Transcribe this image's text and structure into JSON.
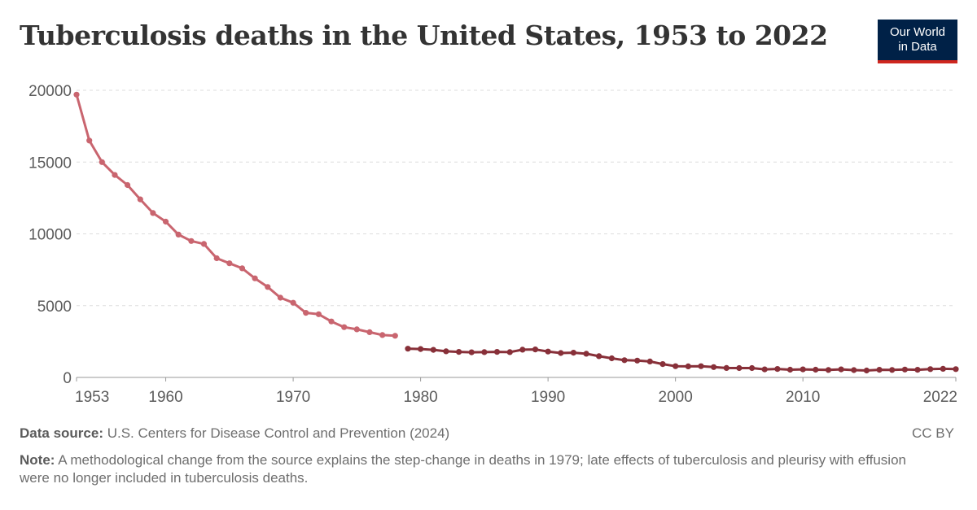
{
  "header": {
    "title": "Tuberculosis deaths in the United States, 1953 to 2022",
    "logo_line1": "Our World",
    "logo_line2": "in Data"
  },
  "footer": {
    "source_label": "Data source:",
    "source_text": "U.S. Centers for Disease Control and Prevention (2024)",
    "license": "CC BY",
    "note_label": "Note:",
    "note_text": "A methodological change from the source explains the step-change in deaths in 1979; late effects of tuberculosis and pleurisy with effusion were no longer included in tuberculosis deaths."
  },
  "colors": {
    "series1": "#c9656f",
    "series2": "#883039",
    "grid": "#dddddd",
    "axis": "#999999",
    "brand": "#002147",
    "brand_accent": "#ce261e"
  },
  "chart_data": {
    "type": "line",
    "title": "Tuberculosis deaths in the United States, 1953 to 2022",
    "xlabel": "",
    "ylabel": "",
    "xlim": [
      1953,
      2022
    ],
    "ylim": [
      0,
      20000
    ],
    "yticks": [
      0,
      5000,
      10000,
      15000,
      20000
    ],
    "xticks": [
      1953,
      1960,
      1970,
      1980,
      1990,
      2000,
      2010,
      2022
    ],
    "grid": true,
    "legend": "none",
    "series": [
      {
        "x": [
          1953,
          1954,
          1955,
          1956,
          1957,
          1958,
          1959,
          1960,
          1961,
          1962,
          1963,
          1964,
          1965,
          1966,
          1967,
          1968,
          1969,
          1970,
          1971,
          1972,
          1973,
          1974,
          1975,
          1976,
          1977,
          1978
        ],
        "values": [
          19700,
          16500,
          15000,
          14100,
          13400,
          12400,
          11450,
          10850,
          9950,
          9500,
          9300,
          8300,
          7950,
          7600,
          6900,
          6300,
          5550,
          5200,
          4500,
          4400,
          3900,
          3500,
          3350,
          3150,
          2950,
          2900
        ]
      },
      {
        "x": [
          1979,
          1980,
          1981,
          1982,
          1983,
          1984,
          1985,
          1986,
          1987,
          1988,
          1989,
          1990,
          1991,
          1992,
          1993,
          1994,
          1995,
          1996,
          1997,
          1998,
          1999,
          2000,
          2001,
          2002,
          2003,
          2004,
          2005,
          2006,
          2007,
          2008,
          2009,
          2010,
          2011,
          2012,
          2013,
          2014,
          2015,
          2016,
          2017,
          2018,
          2019,
          2020,
          2021,
          2022
        ],
        "values": [
          2000,
          1980,
          1920,
          1820,
          1780,
          1750,
          1760,
          1780,
          1760,
          1930,
          1950,
          1800,
          1700,
          1720,
          1650,
          1480,
          1330,
          1200,
          1170,
          1110,
          930,
          780,
          770,
          780,
          720,
          660,
          650,
          650,
          560,
          590,
          540,
          560,
          540,
          520,
          560,
          510,
          480,
          530,
          520,
          550,
          530,
          580,
          600,
          580
        ]
      }
    ]
  }
}
